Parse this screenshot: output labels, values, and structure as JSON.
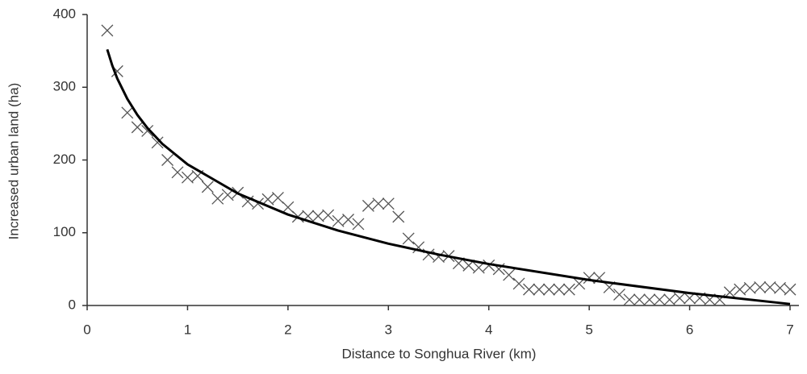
{
  "chart_data": {
    "type": "scatter",
    "x_label": "Distance to Songhua River (km)",
    "y_label": "Increased urban land (ha)",
    "xlim": [
      0,
      7
    ],
    "ylim": [
      0,
      400
    ],
    "xticks": [
      0,
      1,
      2,
      3,
      4,
      5,
      6,
      7
    ],
    "yticks": [
      0,
      100,
      200,
      300,
      400
    ],
    "grid": false,
    "series": [
      {
        "type": "scatter",
        "marker": "x",
        "color": "#555555",
        "x": [
          0.2,
          0.3,
          0.4,
          0.5,
          0.6,
          0.7,
          0.8,
          0.9,
          1.0,
          1.1,
          1.2,
          1.3,
          1.4,
          1.5,
          1.6,
          1.7,
          1.8,
          1.9,
          2.0,
          2.1,
          2.2,
          2.3,
          2.4,
          2.5,
          2.6,
          2.7,
          2.8,
          2.9,
          3.0,
          3.1,
          3.2,
          3.3,
          3.4,
          3.5,
          3.6,
          3.7,
          3.8,
          3.9,
          4.0,
          4.1,
          4.2,
          4.3,
          4.4,
          4.5,
          4.6,
          4.7,
          4.8,
          4.9,
          5.0,
          5.1,
          5.2,
          5.3,
          5.4,
          5.5,
          5.6,
          5.7,
          5.8,
          5.9,
          6.0,
          6.1,
          6.2,
          6.3,
          6.4,
          6.5,
          6.6,
          6.7,
          6.8,
          6.9,
          7.0
        ],
        "values": [
          378,
          322,
          265,
          245,
          240,
          224,
          200,
          183,
          176,
          178,
          163,
          147,
          152,
          155,
          143,
          140,
          146,
          148,
          135,
          122,
          123,
          123,
          124,
          116,
          118,
          112,
          137,
          140,
          140,
          122,
          92,
          80,
          70,
          67,
          68,
          58,
          55,
          52,
          55,
          50,
          42,
          30,
          22,
          22,
          22,
          22,
          22,
          30,
          38,
          38,
          25,
          15,
          8,
          8,
          8,
          8,
          8,
          10,
          10,
          10,
          8,
          8,
          18,
          22,
          24,
          25,
          25,
          24,
          22
        ]
      },
      {
        "type": "line",
        "color": "#000000",
        "x": [
          0.2,
          0.25,
          0.3,
          0.4,
          0.5,
          0.6,
          0.75,
          1,
          1.5,
          2,
          2.5,
          3,
          3.5,
          4,
          5,
          6,
          7
        ],
        "values": [
          352,
          330,
          312,
          284,
          262,
          244,
          222,
          194,
          154,
          125,
          103,
          85,
          70,
          57,
          35,
          17,
          2
        ]
      }
    ]
  }
}
